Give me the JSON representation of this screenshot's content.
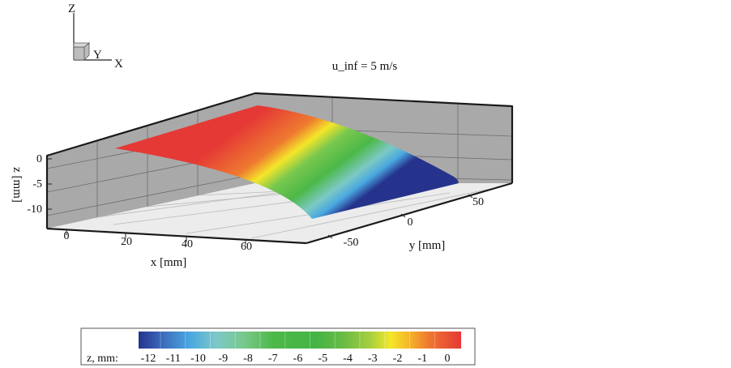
{
  "chart_data": {
    "type": "surface",
    "title": "u_inf = 5 m/s",
    "xlabel": "x [mm]",
    "ylabel": "y [mm]",
    "zlabel": "z [mm]",
    "x_ticks": [
      0,
      20,
      40,
      60
    ],
    "y_ticks": [
      -50,
      0,
      50
    ],
    "z_ticks": [
      0,
      -5,
      -10
    ],
    "xlim": [
      -5,
      80
    ],
    "ylim": [
      -75,
      75
    ],
    "zlim": [
      -14,
      2
    ],
    "surface": {
      "x_range": [
        0,
        65
      ],
      "y_range": [
        -65,
        65
      ],
      "z_min": -12.5,
      "z_max": 0
    },
    "orientation_axes": [
      "Z",
      "Y",
      "X"
    ],
    "colorbar": {
      "label": "z, mm:",
      "ticks": [
        -12,
        -11,
        -10,
        -9,
        -8,
        -7,
        -6,
        -5,
        -4,
        -3,
        -2,
        -1,
        0
      ],
      "colors": [
        "#26338c",
        "#3d6fbf",
        "#4aa8e0",
        "#7cc8c8",
        "#78c88a",
        "#4cb848",
        "#44b444",
        "#5ab444",
        "#a8d040",
        "#f4e628",
        "#f5b52a",
        "#ee7830",
        "#e53935"
      ]
    }
  }
}
